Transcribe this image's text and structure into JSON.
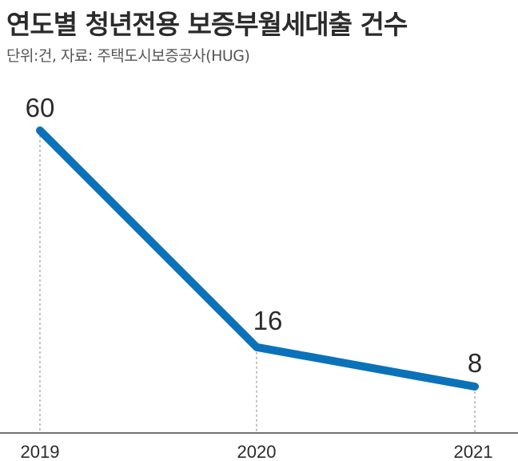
{
  "title": "연도별 청년전용 보증부월세대출 건수",
  "subtitle": "단위:건, 자료: 주택도시보증공사(HUG)",
  "colors": {
    "line": "#0b72b9",
    "guide": "#8a8a8a",
    "axis": "#444444"
  },
  "chart_data": {
    "type": "line",
    "categories": [
      "2019",
      "2020",
      "2021"
    ],
    "values": [
      60,
      16,
      8
    ],
    "data_labels": [
      "60",
      "16",
      "8"
    ],
    "ylim": [
      0,
      70
    ],
    "grid": false,
    "legend": "none"
  }
}
